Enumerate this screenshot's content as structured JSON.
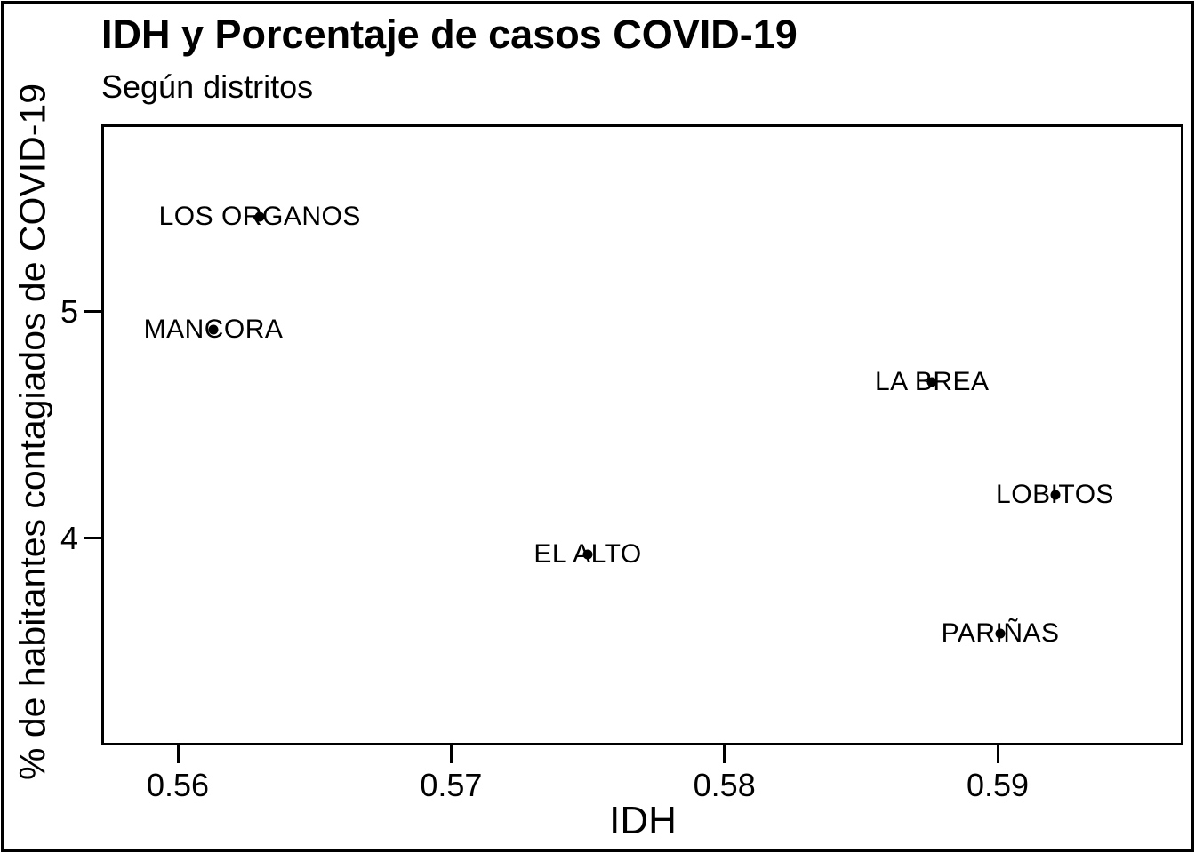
{
  "chart_data": {
    "type": "scatter",
    "title": "IDH y Porcentaje de casos COVID-19",
    "subtitle": "Según distritos",
    "xlabel": "IDH",
    "ylabel": "% de habitantes contagiados de COVID-19",
    "xlim": [
      0.5572,
      0.5968
    ],
    "ylim": [
      3.086,
      5.827
    ],
    "grid": false,
    "legend": "none",
    "x_ticks": [
      {
        "value": 0.56,
        "label": "0.56"
      },
      {
        "value": 0.57,
        "label": "0.57"
      },
      {
        "value": 0.58,
        "label": "0.58"
      },
      {
        "value": 0.59,
        "label": "0.59"
      }
    ],
    "y_ticks": [
      {
        "value": 4,
        "label": "4"
      },
      {
        "value": 5,
        "label": "5"
      }
    ],
    "points": [
      {
        "label": "LOS ORGANOS",
        "x": 0.563,
        "y": 5.42
      },
      {
        "label": "MANCORA",
        "x": 0.5613,
        "y": 4.92
      },
      {
        "label": "LA BREA",
        "x": 0.5876,
        "y": 4.69
      },
      {
        "label": "LOBITOS",
        "x": 0.5921,
        "y": 4.19
      },
      {
        "label": "EL ALTO",
        "x": 0.575,
        "y": 3.93
      },
      {
        "label": "PARIÑAS",
        "x": 0.5901,
        "y": 3.58
      }
    ],
    "colors": {
      "point": "#000000",
      "text": "#000000",
      "background": "#ffffff",
      "border": "#000000"
    }
  }
}
